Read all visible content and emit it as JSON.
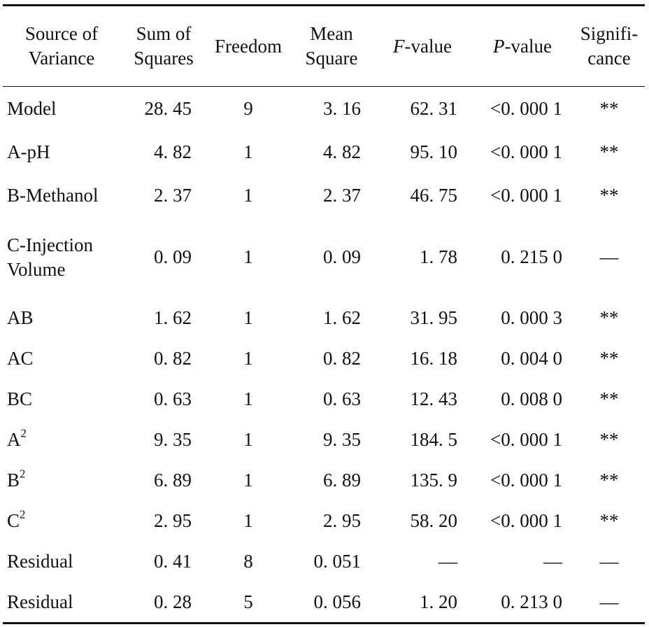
{
  "table": {
    "headers": {
      "source": [
        "Source of",
        "Variance"
      ],
      "sum_of_squares": [
        "Sum of",
        "Squares"
      ],
      "freedom": [
        "Freedom"
      ],
      "mean_square": [
        "Mean",
        "Square"
      ],
      "f_value_italic": "F",
      "f_value_rest": "-value",
      "p_value_italic": "P",
      "p_value_rest": "-value",
      "significance": [
        "Signifi-",
        "cance"
      ]
    },
    "rows": [
      {
        "source": "Model",
        "sup": "",
        "ss": "28. 45",
        "df": "9",
        "ms": "3. 16",
        "f": "62. 31",
        "p": "<0. 000 1",
        "sig": "**"
      },
      {
        "source": "A-pH",
        "sup": "",
        "ss": "4. 82",
        "df": "1",
        "ms": "4. 82",
        "f": "95. 10",
        "p": "<0. 000 1",
        "sig": "**"
      },
      {
        "source": "B-Methanol",
        "sup": "",
        "ss": "2. 37",
        "df": "1",
        "ms": "2. 37",
        "f": "46. 75",
        "p": "<0. 000 1",
        "sig": "**"
      },
      {
        "source": "C-Injection Volume",
        "sup": "",
        "ss": "0. 09",
        "df": "1",
        "ms": "0. 09",
        "f": "1. 78",
        "p": "0. 215 0",
        "sig": "—"
      },
      {
        "source": "AB",
        "sup": "",
        "ss": "1. 62",
        "df": "1",
        "ms": "1. 62",
        "f": "31. 95",
        "p": "0. 000 3",
        "sig": "**"
      },
      {
        "source": "AC",
        "sup": "",
        "ss": "0. 82",
        "df": "1",
        "ms": "0. 82",
        "f": "16. 18",
        "p": "0. 004 0",
        "sig": "**"
      },
      {
        "source": "BC",
        "sup": "",
        "ss": "0. 63",
        "df": "1",
        "ms": "0. 63",
        "f": "12. 43",
        "p": "0. 008 0",
        "sig": "**"
      },
      {
        "source": "A",
        "sup": "2",
        "ss": "9. 35",
        "df": "1",
        "ms": "9. 35",
        "f": "184. 5",
        "p": "<0. 000 1",
        "sig": "**"
      },
      {
        "source": "B",
        "sup": "2",
        "ss": "6. 89",
        "df": "1",
        "ms": "6. 89",
        "f": "135. 9",
        "p": "<0. 000 1",
        "sig": "**"
      },
      {
        "source": "C",
        "sup": "2",
        "ss": "2. 95",
        "df": "1",
        "ms": "2. 95",
        "f": "58. 20",
        "p": "<0. 000 1",
        "sig": "**"
      },
      {
        "source": "Residual",
        "sup": "",
        "ss": "0. 41",
        "df": "8",
        "ms": "0. 051",
        "f": "—",
        "p": "—",
        "sig": "—"
      },
      {
        "source": "Residual",
        "sup": "",
        "ss": "0. 28",
        "df": "5",
        "ms": "0. 056",
        "f": "1. 20",
        "p": "0. 213 0",
        "sig": "—"
      }
    ]
  }
}
